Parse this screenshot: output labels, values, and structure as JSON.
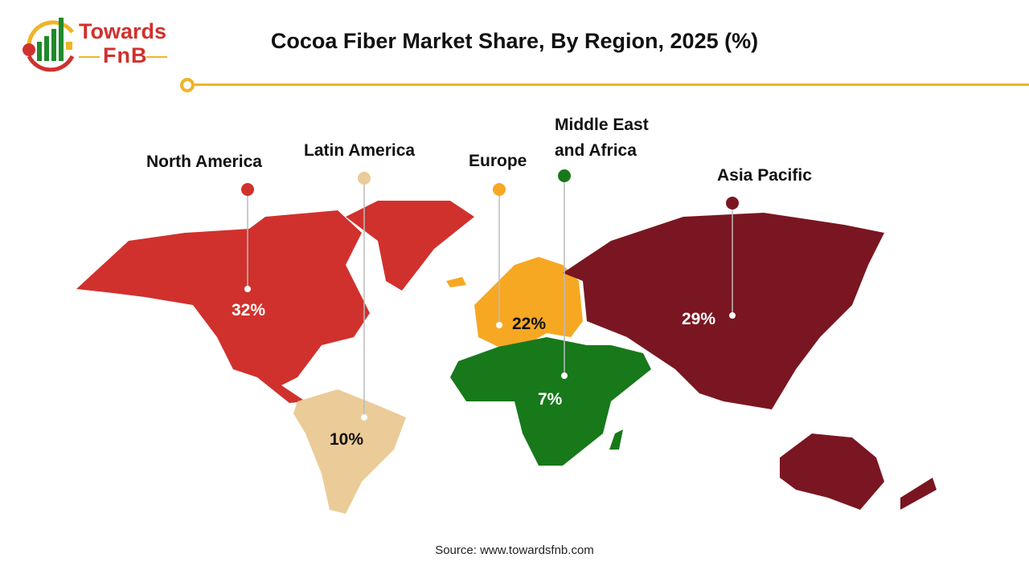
{
  "logo": {
    "line1": "Towards",
    "line2": "FnB"
  },
  "title": "Cocoa Fiber Market Share, By Region, 2025 (%)",
  "source": "Source: www.towardsfnb.com",
  "chart_data": {
    "type": "map",
    "title": "Cocoa Fiber Market Share, By Region, 2025 (%)",
    "regions": [
      {
        "name": "North America",
        "value": 32,
        "label": "32%",
        "color": "#d0312d"
      },
      {
        "name": "Latin America",
        "value": 10,
        "label": "10%",
        "color": "#ebcb98"
      },
      {
        "name": "Europe",
        "value": 22,
        "label": "22%",
        "color": "#f7a823"
      },
      {
        "name": "Middle East and Africa",
        "value": 7,
        "label": "7%",
        "color": "#17791a"
      },
      {
        "name": "Asia Pacific",
        "value": 29,
        "label": "29%",
        "color": "#7a1621"
      }
    ]
  }
}
